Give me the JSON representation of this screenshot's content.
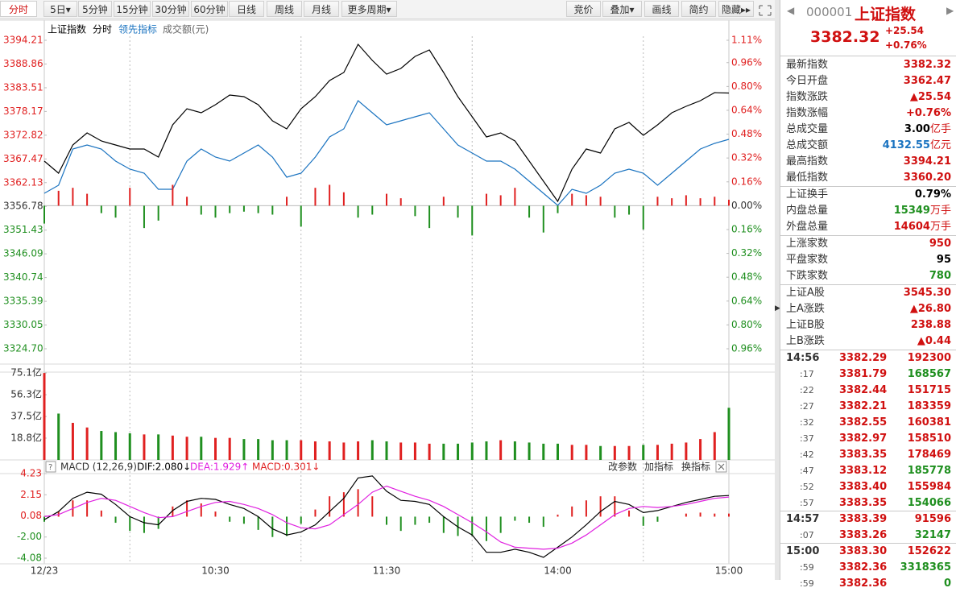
{
  "toolbar": {
    "periods": [
      "分时",
      "5日▾",
      "5分钟",
      "15分钟",
      "30分钟",
      "60分钟",
      "日线",
      "周线",
      "月线",
      "更多周期▾"
    ],
    "tools": [
      "竞价",
      "叠加▾",
      "画线",
      "简约",
      "隐藏▸▸"
    ]
  },
  "chart_data": [
    {
      "type": "line",
      "mode_label": "分时",
      "volume_label": "成交额(元)",
      "x_labels": [
        "12/23",
        "10:30",
        "11:30",
        "14:00",
        "15:00"
      ],
      "ylim": [
        3324.7,
        3394.21
      ],
      "yticks": [
        3394.21,
        3388.86,
        3383.51,
        3378.17,
        3372.82,
        3367.47,
        3362.13,
        3356.78,
        3351.43,
        3346.09,
        3340.74,
        3335.39,
        3330.05,
        {
          "value": 3324.7,
          "label": "3324.70"
        }
      ],
      "y2lim": [
        -0.96,
        1.11
      ],
      "y2ticks": [
        {
          "value": 1.11,
          "label": "1.11%"
        },
        {
          "value": 0.96,
          "label": "0.96%"
        },
        {
          "value": 0.8,
          "label": "0.80%"
        },
        {
          "value": 0.64,
          "label": "0.64%"
        },
        {
          "value": 0.48,
          "label": "0.48%"
        },
        {
          "value": 0.32,
          "label": "0.32%"
        },
        {
          "value": 0.16,
          "label": "0.16%"
        },
        {
          "value": 0,
          "label": "0.00%"
        },
        {
          "value": -0.16,
          "label": "0.16%"
        },
        {
          "value": -0.32,
          "label": "0.32%"
        },
        {
          "value": -0.48,
          "label": "0.48%"
        },
        {
          "value": -0.64,
          "label": "0.64%"
        },
        {
          "value": -0.8,
          "label": "0.80%"
        },
        {
          "value": -0.96,
          "label": "0.96%"
        }
      ],
      "up_color": "#e02020",
      "down_color": "#1f8f1f",
      "series": [
        {
          "name": "上证指数",
          "color": "#000000",
          "values": [
            3366.99,
            3364.26,
            3370.61,
            3373.34,
            3371.52,
            3370.61,
            3369.71,
            3369.71,
            3367.89,
            3375.15,
            3378.78,
            3377.87,
            3379.69,
            3381.87,
            3381.5,
            3379.69,
            3376.06,
            3374.24,
            3378.78,
            3381.5,
            3385.13,
            3386.95,
            3393.3,
            3389.67,
            3386.59,
            3387.86,
            3390.58,
            3392.03,
            3386.95,
            3381.5,
            3376.97,
            3372.43,
            3373.34,
            3371.52,
            3366.99,
            3362.45,
            3357.91,
            3365.17,
            3369.71,
            3368.8,
            3374.24,
            3375.7,
            3372.79,
            3375.15,
            3377.87,
            3379.33,
            3380.6,
            3382.41,
            3382.32
          ]
        },
        {
          "name": "领先指标",
          "color": "#1a73c0",
          "values": [
            3359.72,
            3361.54,
            3369.71,
            3370.61,
            3369.71,
            3366.99,
            3365.17,
            3364.26,
            3360.63,
            3360.63,
            3366.99,
            3369.71,
            3367.89,
            3366.99,
            3368.8,
            3370.61,
            3367.89,
            3363.35,
            3364.26,
            3367.89,
            3372.43,
            3374.24,
            3380.6,
            3377.87,
            3375.15,
            3376.06,
            3376.97,
            3377.87,
            3374.24,
            3370.61,
            3368.8,
            3366.99,
            3366.99,
            3365.17,
            3362.45,
            3359.72,
            3357.0,
            3360.63,
            3359.72,
            3361.54,
            3364.26,
            3365.17,
            3364.26,
            3361.54,
            3364.26,
            3366.99,
            3369.71,
            3370.98,
            3371.89
          ]
        },
        {
          "axis": "y2",
          "values": [
            -0.12,
            0.1,
            0.12,
            0.08,
            -0.05,
            -0.08,
            0.12,
            -0.15,
            -0.1,
            0.14,
            0.06,
            -0.06,
            -0.08,
            -0.05,
            -0.04,
            -0.05,
            -0.06,
            0.06,
            -0.14,
            0.12,
            0.14,
            0.09,
            -0.08,
            -0.06,
            0.08,
            0.05,
            -0.07,
            -0.15,
            0.06,
            -0.08,
            -0.2,
            0.08,
            0.07,
            0.12,
            -0.08,
            -0.18,
            -0.05,
            0.08,
            0.07,
            0.06,
            -0.08,
            -0.06,
            -0.16,
            0.06,
            0.05,
            0.07,
            0.05,
            0.06,
            0.04
          ]
        }
      ]
    },
    {
      "type": "bar",
      "ylim": [
        0,
        75.1
      ],
      "yticks": [
        {
          "value": 75.1,
          "label": "75.1亿"
        },
        {
          "value": 56.3,
          "label": "56.3亿"
        },
        {
          "value": 37.5,
          "label": "37.5亿"
        },
        {
          "value": 18.8,
          "label": "18.8亿"
        }
      ],
      "values": [
        75,
        40,
        32,
        28,
        25,
        24,
        23,
        22,
        22,
        21,
        20,
        20,
        19,
        19,
        18,
        18,
        17,
        17,
        17,
        16,
        16,
        15,
        16,
        17,
        16,
        15,
        15,
        14,
        14,
        14,
        15,
        16,
        17,
        16,
        15,
        14,
        14,
        13,
        13,
        12,
        12,
        12,
        13,
        13,
        14,
        15,
        18,
        24,
        45
      ]
    },
    {
      "type": "macd",
      "title": "MACD (12,26,9)",
      "buttons": [
        "改参数",
        "加指标",
        "换指标"
      ],
      "ylim": [
        -4.08,
        4.23
      ],
      "yticks": [
        4.23,
        2.15,
        0.08,
        {
          "value": -2,
          "label": "-2.00"
        },
        -4.08
      ],
      "series": [
        {
          "label": "DIF:2.080↓",
          "color": "#000000",
          "values": [
            -0.3,
            0.5,
            1.8,
            2.4,
            2.2,
            1.2,
            0.0,
            -0.6,
            -0.8,
            0.6,
            1.5,
            1.8,
            1.7,
            1.2,
            0.8,
            0.0,
            -1.2,
            -1.8,
            -1.5,
            -0.8,
            0.5,
            1.8,
            3.8,
            4.0,
            2.5,
            1.6,
            1.5,
            1.2,
            0.0,
            -1.0,
            -1.8,
            -3.5,
            -3.5,
            -3.2,
            -3.5,
            -4.0,
            -3.0,
            -2.0,
            -0.8,
            0.5,
            1.5,
            1.2,
            0.4,
            0.6,
            1.0,
            1.4,
            1.7,
            2.0,
            2.08
          ]
        },
        {
          "label": "DEA:1.929↑",
          "color": "#e020e0",
          "values": [
            0.0,
            0.2,
            0.8,
            1.4,
            1.8,
            1.6,
            1.0,
            0.4,
            -0.1,
            0.0,
            0.5,
            1.0,
            1.4,
            1.5,
            1.2,
            0.8,
            0.2,
            -0.6,
            -1.1,
            -1.2,
            -0.8,
            0.2,
            1.2,
            2.4,
            3.0,
            2.5,
            2.0,
            1.6,
            1.0,
            0.2,
            -0.6,
            -1.5,
            -2.5,
            -3.0,
            -3.1,
            -3.2,
            -3.1,
            -2.6,
            -1.8,
            -0.8,
            0.2,
            0.8,
            1.0,
            0.9,
            1.0,
            1.2,
            1.5,
            1.8,
            1.929
          ]
        },
        {
          "label": "MACD:0.301↓",
          "color": "#e02020",
          "values": [
            -0.5,
            0.5,
            1.6,
            1.6,
            0.6,
            -0.6,
            -1.4,
            -1.6,
            -1.2,
            1.0,
            1.6,
            1.3,
            0.5,
            -0.5,
            -0.7,
            -1.3,
            -2.0,
            -1.9,
            -0.7,
            0.7,
            2.0,
            2.4,
            2.7,
            2.0,
            -0.8,
            -1.4,
            -0.8,
            -0.6,
            -1.6,
            -1.9,
            -1.9,
            -2.4,
            -1.6,
            -0.4,
            -0.6,
            -1.0,
            0.2,
            1.0,
            1.6,
            2.0,
            2.0,
            0.6,
            -0.9,
            -0.5,
            0.0,
            0.3,
            0.4,
            0.3,
            0.301
          ]
        }
      ]
    }
  ],
  "quote": {
    "code": "000001",
    "name": "上证指数",
    "price": "3382.32",
    "change": "+25.54",
    "change_pct": "+0.76%",
    "stat_groups": [
      [
        {
          "label": "最新指数",
          "value": "3382.32",
          "color": "#d01010"
        },
        {
          "label": "今日开盘",
          "value": "3362.47",
          "color": "#d01010"
        },
        {
          "label": "指数涨跌",
          "value": "▲25.54",
          "color": "#d01010"
        },
        {
          "label": "指数涨幅",
          "value": "+0.76%",
          "color": "#d01010"
        },
        {
          "label": "总成交量",
          "value": "3.00",
          "unit": "亿手",
          "color": "#000000"
        },
        {
          "label": "总成交额",
          "value": "4132.55",
          "unit": "亿元",
          "color": "#1a73c0"
        },
        {
          "label": "最高指数",
          "value": "3394.21",
          "color": "#d01010"
        },
        {
          "label": "最低指数",
          "value": "3360.20",
          "color": "#d01010"
        }
      ],
      [
        {
          "label": "上证换手",
          "value": "0.79%",
          "color": "#000000"
        },
        {
          "label": "内盘总量",
          "value": "15349",
          "unit": "万手",
          "color": "#1f8f1f"
        },
        {
          "label": "外盘总量",
          "value": "14604",
          "unit": "万手",
          "color": "#d01010"
        }
      ],
      [
        {
          "label": "上涨家数",
          "value": "950",
          "color": "#d01010"
        },
        {
          "label": "平盘家数",
          "value": "95",
          "color": "#000000"
        },
        {
          "label": "下跌家数",
          "value": "780",
          "color": "#1f8f1f"
        }
      ],
      [
        {
          "label": "上证A股",
          "value": "3545.30",
          "color": "#d01010"
        },
        {
          "label": "上A涨跌",
          "value": "▲26.80",
          "color": "#d01010"
        },
        {
          "label": "上证B股",
          "value": "238.88",
          "color": "#d01010"
        },
        {
          "label": "上B涨跌",
          "value": "▲0.44",
          "color": "#d01010"
        }
      ]
    ],
    "trade_groups": [
      [
        {
          "time": "14:56",
          "price": "3382.29",
          "volume": "192300",
          "color": "#d01010"
        },
        {
          "time": ":17",
          "price": "3381.79",
          "volume": "168567",
          "color": "#1f8f1f"
        },
        {
          "time": ":22",
          "price": "3382.44",
          "volume": "151715",
          "color": "#d01010"
        },
        {
          "time": ":27",
          "price": "3382.21",
          "volume": "183359",
          "color": "#d01010"
        },
        {
          "time": ":32",
          "price": "3382.55",
          "volume": "160381",
          "color": "#d01010"
        },
        {
          "time": ":37",
          "price": "3382.97",
          "volume": "158510",
          "color": "#d01010"
        },
        {
          "time": ":42",
          "price": "3383.35",
          "volume": "178469",
          "color": "#d01010"
        },
        {
          "time": ":47",
          "price": "3383.12",
          "volume": "185778",
          "color": "#1f8f1f"
        },
        {
          "time": ":52",
          "price": "3383.40",
          "volume": "155984",
          "color": "#d01010"
        },
        {
          "time": ":57",
          "price": "3383.35",
          "volume": "154066",
          "color": "#1f8f1f"
        }
      ],
      [
        {
          "time": "14:57",
          "price": "3383.39",
          "volume": "91596",
          "color": "#d01010"
        },
        {
          "time": ":07",
          "price": "3383.26",
          "volume": "32147",
          "color": "#1f8f1f"
        }
      ],
      [
        {
          "time": "15:00",
          "price": "3383.30",
          "volume": "152622",
          "color": "#d01010"
        },
        {
          "time": ":59",
          "price": "3382.36",
          "volume": "3318365",
          "color": "#1f8f1f"
        },
        {
          "time": ":59",
          "price": "3382.36",
          "volume": "0",
          "color": "#1f8f1f"
        }
      ]
    ]
  }
}
